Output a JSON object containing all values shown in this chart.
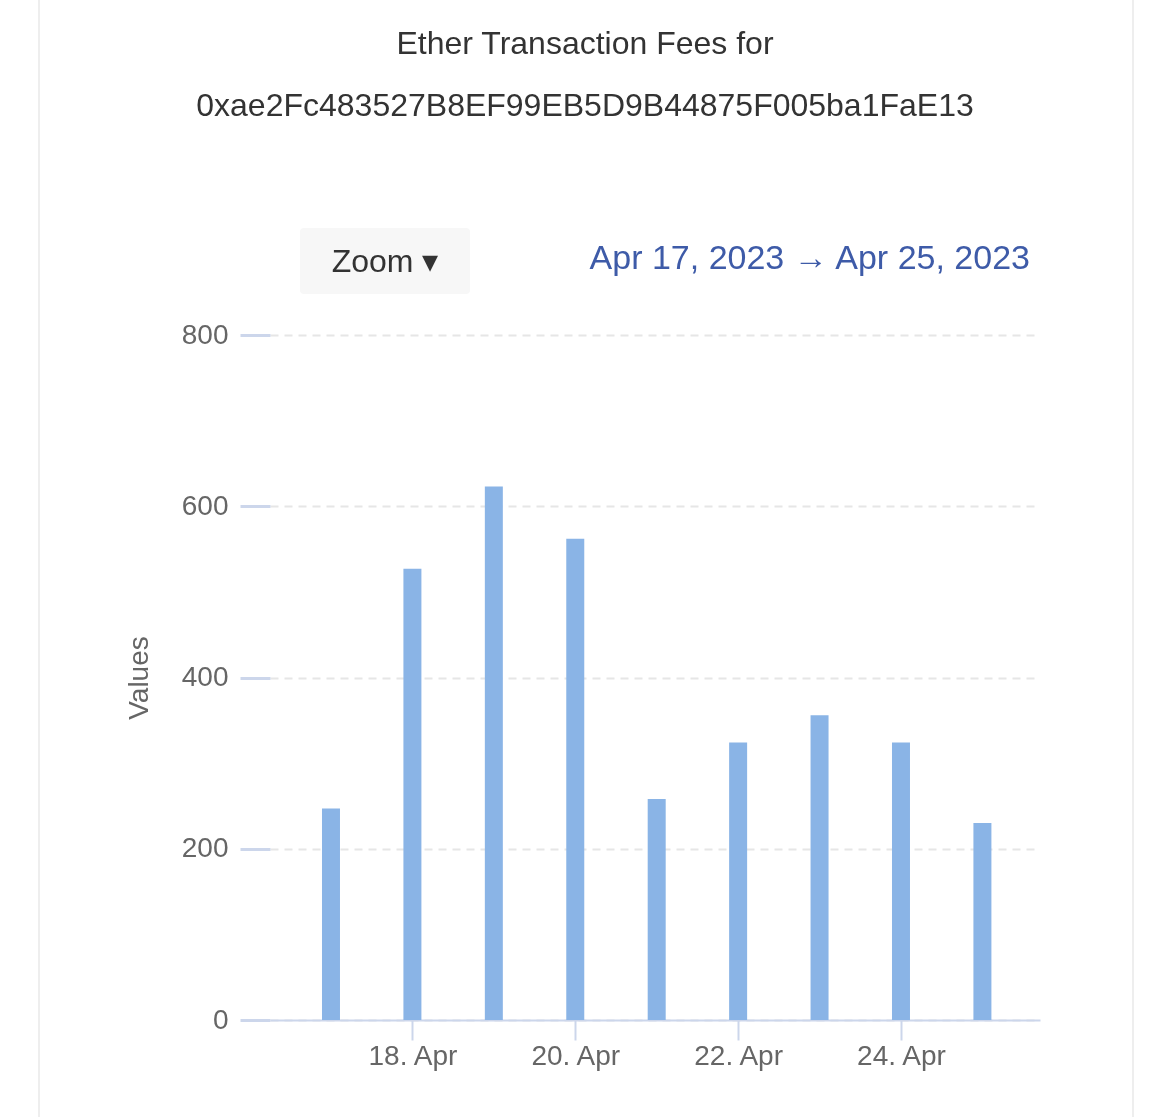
{
  "chart_data": {
    "type": "bar",
    "title": "Ether Transaction Fees for 0xae2Fc483527B8EF99EB5D9B44875F005ba1FaE13",
    "annotations": [
      "Zoom ▾",
      "Apr 17, 2023 → Apr 25, 2023"
    ],
    "ylabel": "Values",
    "x": [
      "2023-04-17",
      "2023-04-18",
      "2023-04-19",
      "2023-04-20",
      "2023-04-21",
      "2023-04-22",
      "2023-04-23",
      "2023-04-24",
      "2023-04-25"
    ],
    "values": [
      247,
      527,
      623,
      562,
      258,
      324,
      356,
      324,
      230
    ],
    "color": "#8ab4e6",
    "xlim": [
      "2023-04-16T07:30",
      "2023-04-25T15:30"
    ],
    "xticks": [
      {
        "value": "2023-04-18",
        "label": "18. Apr"
      },
      {
        "value": "2023-04-20",
        "label": "20. Apr"
      },
      {
        "value": "2023-04-22",
        "label": "22. Apr"
      },
      {
        "value": "2023-04-24",
        "label": "24. Apr"
      }
    ],
    "ylim": [
      0,
      800
    ],
    "yticks": [
      0,
      200,
      400,
      600,
      800
    ],
    "grid": "y"
  }
}
